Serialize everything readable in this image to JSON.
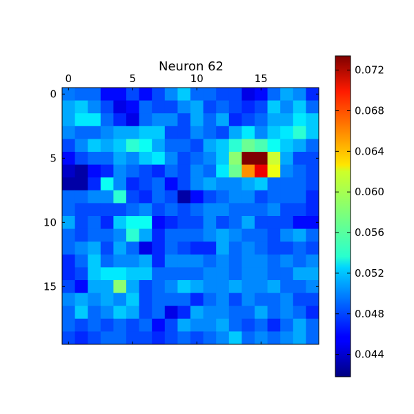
{
  "chart_data": {
    "type": "heatmap",
    "title": "Neuron 62",
    "colormap": "jet",
    "rows": 20,
    "cols": 20,
    "vmin": 0.0418,
    "vmax": 0.0734,
    "x_ticks": [
      0,
      5,
      10,
      15
    ],
    "x_tick_labels": [
      "0",
      "5",
      "10",
      "15"
    ],
    "x_axis_position": "top",
    "y_ticks": [
      0,
      5,
      10,
      15
    ],
    "y_tick_labels": [
      "0",
      "5",
      "10",
      "15"
    ],
    "colorbar_ticks": [
      0.044,
      0.048,
      0.052,
      0.056,
      0.06,
      0.064,
      0.068,
      0.072
    ],
    "colorbar_tick_labels": [
      "0.044",
      "0.048",
      "0.052",
      "0.056",
      "0.060",
      "0.064",
      "0.068",
      "0.072"
    ],
    "values": [
      [
        0.0495,
        0.049,
        0.049,
        0.046,
        0.046,
        0.048,
        0.046,
        0.048,
        0.05,
        0.052,
        0.049,
        0.049,
        0.048,
        0.048,
        0.045,
        0.046,
        0.049,
        0.051,
        0.05,
        0.047
      ],
      [
        0.051,
        0.052,
        0.05,
        0.048,
        0.045,
        0.046,
        0.049,
        0.048,
        0.048,
        0.05,
        0.051,
        0.048,
        0.049,
        0.048,
        0.047,
        0.048,
        0.052,
        0.05,
        0.052,
        0.049
      ],
      [
        0.051,
        0.053,
        0.053,
        0.049,
        0.047,
        0.045,
        0.049,
        0.05,
        0.05,
        0.048,
        0.051,
        0.049,
        0.051,
        0.047,
        0.048,
        0.049,
        0.051,
        0.051,
        0.053,
        0.052
      ],
      [
        0.05,
        0.049,
        0.049,
        0.05,
        0.051,
        0.051,
        0.052,
        0.052,
        0.048,
        0.048,
        0.05,
        0.049,
        0.048,
        0.051,
        0.053,
        0.05,
        0.052,
        0.053,
        0.055,
        0.052
      ],
      [
        0.048,
        0.05,
        0.052,
        0.051,
        0.052,
        0.055,
        0.054,
        0.051,
        0.049,
        0.049,
        0.048,
        0.051,
        0.052,
        0.055,
        0.057,
        0.056,
        0.054,
        0.052,
        0.051,
        0.049
      ],
      [
        0.046,
        0.048,
        0.049,
        0.049,
        0.051,
        0.05,
        0.052,
        0.053,
        0.05,
        0.048,
        0.049,
        0.05,
        0.052,
        0.058,
        0.0734,
        0.0734,
        0.06,
        0.051,
        0.048,
        0.048
      ],
      [
        0.044,
        0.043,
        0.046,
        0.047,
        0.05,
        0.049,
        0.048,
        0.047,
        0.049,
        0.048,
        0.05,
        0.049,
        0.053,
        0.057,
        0.065,
        0.07,
        0.061,
        0.05,
        0.049,
        0.048
      ],
      [
        0.043,
        0.043,
        0.047,
        0.054,
        0.05,
        0.047,
        0.048,
        0.049,
        0.046,
        0.048,
        0.05,
        0.051,
        0.05,
        0.05,
        0.051,
        0.052,
        0.049,
        0.049,
        0.049,
        0.048
      ],
      [
        0.049,
        0.049,
        0.05,
        0.05,
        0.055,
        0.048,
        0.047,
        0.049,
        0.048,
        0.043,
        0.046,
        0.048,
        0.049,
        0.05,
        0.05,
        0.048,
        0.049,
        0.049,
        0.049,
        0.047
      ],
      [
        0.049,
        0.048,
        0.048,
        0.048,
        0.048,
        0.049,
        0.05,
        0.048,
        0.049,
        0.048,
        0.049,
        0.05,
        0.05,
        0.049,
        0.049,
        0.049,
        0.05,
        0.048,
        0.048,
        0.047
      ],
      [
        0.051,
        0.048,
        0.049,
        0.047,
        0.052,
        0.054,
        0.054,
        0.046,
        0.047,
        0.048,
        0.048,
        0.05,
        0.048,
        0.049,
        0.051,
        0.048,
        0.048,
        0.048,
        0.046,
        0.046
      ],
      [
        0.049,
        0.048,
        0.049,
        0.049,
        0.05,
        0.055,
        0.051,
        0.047,
        0.049,
        0.049,
        0.049,
        0.05,
        0.051,
        0.05,
        0.049,
        0.049,
        0.048,
        0.05,
        0.051,
        0.049
      ],
      [
        0.049,
        0.05,
        0.051,
        0.048,
        0.051,
        0.049,
        0.045,
        0.047,
        0.049,
        0.048,
        0.047,
        0.047,
        0.051,
        0.049,
        0.05,
        0.049,
        0.048,
        0.048,
        0.049,
        0.048
      ],
      [
        0.047,
        0.049,
        0.052,
        0.049,
        0.05,
        0.05,
        0.051,
        0.047,
        0.05,
        0.05,
        0.05,
        0.049,
        0.05,
        0.049,
        0.05,
        0.05,
        0.049,
        0.05,
        0.049,
        0.05
      ],
      [
        0.047,
        0.048,
        0.052,
        0.053,
        0.053,
        0.052,
        0.052,
        0.049,
        0.049,
        0.049,
        0.049,
        0.05,
        0.05,
        0.049,
        0.05,
        0.05,
        0.049,
        0.049,
        0.051,
        0.051
      ],
      [
        0.048,
        0.046,
        0.051,
        0.051,
        0.058,
        0.051,
        0.048,
        0.049,
        0.05,
        0.052,
        0.051,
        0.05,
        0.05,
        0.051,
        0.05,
        0.05,
        0.051,
        0.049,
        0.049,
        0.05
      ],
      [
        0.05,
        0.051,
        0.05,
        0.051,
        0.05,
        0.052,
        0.048,
        0.049,
        0.049,
        0.049,
        0.047,
        0.049,
        0.05,
        0.048,
        0.05,
        0.049,
        0.049,
        0.05,
        0.048,
        0.048
      ],
      [
        0.049,
        0.052,
        0.049,
        0.05,
        0.052,
        0.051,
        0.048,
        0.049,
        0.045,
        0.047,
        0.051,
        0.05,
        0.05,
        0.049,
        0.049,
        0.051,
        0.049,
        0.05,
        0.049,
        0.047
      ],
      [
        0.049,
        0.048,
        0.049,
        0.048,
        0.049,
        0.048,
        0.049,
        0.046,
        0.048,
        0.051,
        0.05,
        0.05,
        0.051,
        0.049,
        0.048,
        0.049,
        0.047,
        0.049,
        0.051,
        0.049
      ],
      [
        0.048,
        0.047,
        0.048,
        0.049,
        0.049,
        0.048,
        0.048,
        0.047,
        0.048,
        0.049,
        0.048,
        0.049,
        0.05,
        0.052,
        0.049,
        0.05,
        0.049,
        0.05,
        0.051,
        0.049
      ]
    ]
  }
}
